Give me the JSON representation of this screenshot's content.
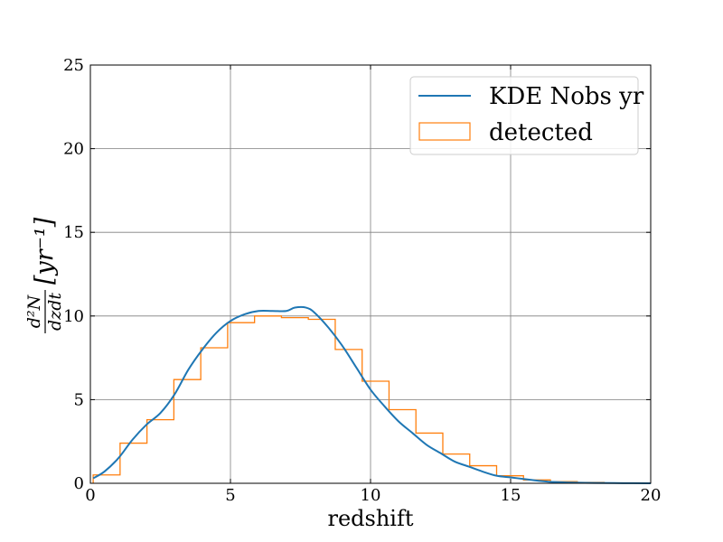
{
  "chart_data": {
    "type": "line",
    "xlabel": "redshift",
    "ylabel": {
      "numerator": "d²N",
      "denominator": "dzdt",
      "unit": "[yr⁻¹]"
    },
    "xlim": [
      0,
      20
    ],
    "ylim": [
      0,
      25
    ],
    "x_ticks": [
      0,
      5,
      10,
      15,
      20
    ],
    "y_ticks": [
      0,
      5,
      10,
      15,
      20,
      25
    ],
    "grid": true,
    "legend_position": "top-right",
    "series": [
      {
        "name": "KDE Nobs yr",
        "type": "line",
        "color": "#1f77b4",
        "x": [
          0.1,
          0.5,
          1.0,
          1.5,
          2.0,
          2.5,
          3.0,
          3.5,
          4.0,
          4.5,
          5.0,
          5.5,
          6.0,
          6.5,
          7.0,
          7.3,
          7.7,
          8.0,
          8.5,
          9.0,
          9.5,
          10.0,
          10.5,
          11.0,
          11.5,
          12.0,
          12.5,
          13.0,
          13.5,
          14.0,
          14.5,
          15.0,
          15.5,
          16.0,
          16.5,
          17.0,
          18.0,
          19.0,
          20.0
        ],
        "y": [
          0.3,
          0.7,
          1.5,
          2.6,
          3.5,
          4.2,
          5.3,
          6.8,
          8.0,
          9.0,
          9.7,
          10.1,
          10.3,
          10.3,
          10.3,
          10.5,
          10.5,
          10.2,
          9.3,
          8.2,
          6.9,
          5.6,
          4.6,
          3.7,
          3.0,
          2.3,
          1.8,
          1.3,
          1.0,
          0.7,
          0.45,
          0.35,
          0.25,
          0.15,
          0.08,
          0.05,
          0.02,
          0.01,
          0.0
        ]
      },
      {
        "name": "detected",
        "type": "step-histogram",
        "color": "#ff7f0e",
        "bin_edges": [
          0.1,
          1.06,
          2.02,
          2.98,
          3.94,
          4.9,
          5.86,
          6.82,
          7.78,
          8.74,
          9.7,
          10.66,
          11.62,
          12.58,
          13.54,
          14.5,
          15.46,
          16.42,
          17.38,
          18.34
        ],
        "values": [
          0.5,
          2.4,
          3.8,
          6.2,
          8.1,
          9.6,
          10.0,
          9.9,
          9.8,
          8.0,
          6.1,
          4.4,
          3.0,
          1.75,
          1.05,
          0.45,
          0.2,
          0.1,
          0.05
        ]
      }
    ]
  }
}
